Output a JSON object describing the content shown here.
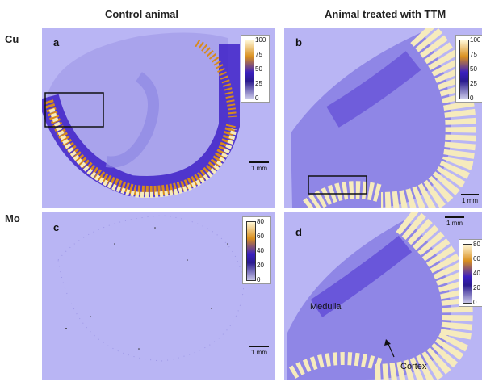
{
  "columns": {
    "left": "Control animal",
    "right": "Animal treated with TTM"
  },
  "rows": {
    "top": "Cu",
    "bottom": "Mo"
  },
  "panels": {
    "a": "a",
    "b": "b",
    "c": "c",
    "d": "d"
  },
  "cu_colorbar": [
    "100",
    "75",
    "50",
    "25",
    "0"
  ],
  "mo_colorbar": [
    "80",
    "60",
    "40",
    "20",
    "0"
  ],
  "scale_label": "1 mm",
  "annotations": {
    "medulla": "Medulla",
    "cortex": "Cortex"
  },
  "colors": {
    "background": "#b9b5f4",
    "cortex_hot": "#f7ecc0",
    "mid": "#4a2fd0",
    "high": "#d98f1e"
  }
}
